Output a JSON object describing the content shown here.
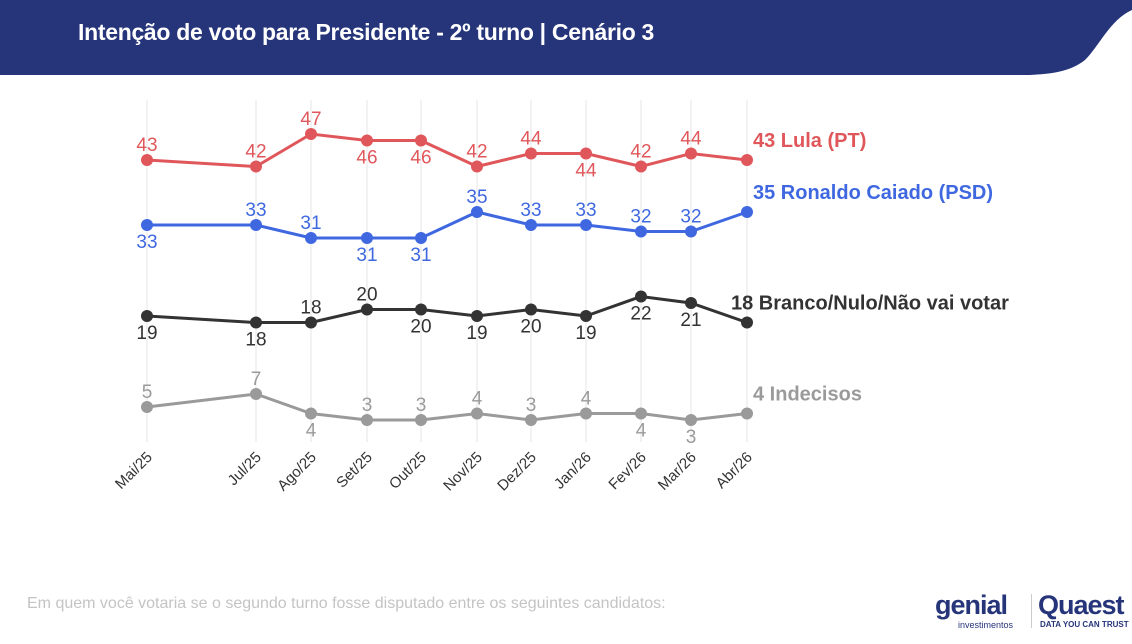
{
  "header": {
    "title": "Intenção de voto para Presidente - 2º turno | Cenário 3",
    "color": "#26357a"
  },
  "footer": {
    "question": "Em quem você votaria se o segundo turno fosse disputado entre os seguintes candidatos:"
  },
  "logos": {
    "genial": "genial",
    "genial_sub": "investimentos",
    "quaest": "Quaest",
    "quaest_sub": "DATA YOU CAN TRUST"
  },
  "chart_data": {
    "type": "line",
    "categories": [
      "Mai/25",
      "Jul/25",
      "Ago/25",
      "Set/25",
      "Out/25",
      "Nov/25",
      "Dez/25",
      "Jan/26",
      "Fev/26",
      "Mar/26",
      "Abr/26"
    ],
    "grid": "vertical",
    "series": [
      {
        "name": "Lula (PT)",
        "end_label": "43 Lula (PT)",
        "color": "#e0575b",
        "values": [
          43,
          42,
          47,
          46,
          46,
          42,
          44,
          44,
          42,
          44,
          43
        ]
      },
      {
        "name": "Ronaldo Caiado (PSD)",
        "end_label": "35 Ronaldo Caiado (PSD)",
        "color": "#3f68e0",
        "values": [
          33,
          33,
          31,
          31,
          31,
          35,
          33,
          33,
          32,
          32,
          35
        ]
      },
      {
        "name": "Branco/Nulo/Não vai votar",
        "end_label": "18 Branco/Nulo/Não vai votar",
        "color": "#333333",
        "values": [
          19,
          18,
          18,
          20,
          20,
          19,
          20,
          19,
          22,
          21,
          18
        ]
      },
      {
        "name": "Indecisos",
        "end_label": "4 Indecisos",
        "color": "#9a9a9a",
        "values": [
          5,
          7,
          4,
          3,
          3,
          4,
          3,
          4,
          4,
          3,
          4
        ]
      }
    ]
  }
}
